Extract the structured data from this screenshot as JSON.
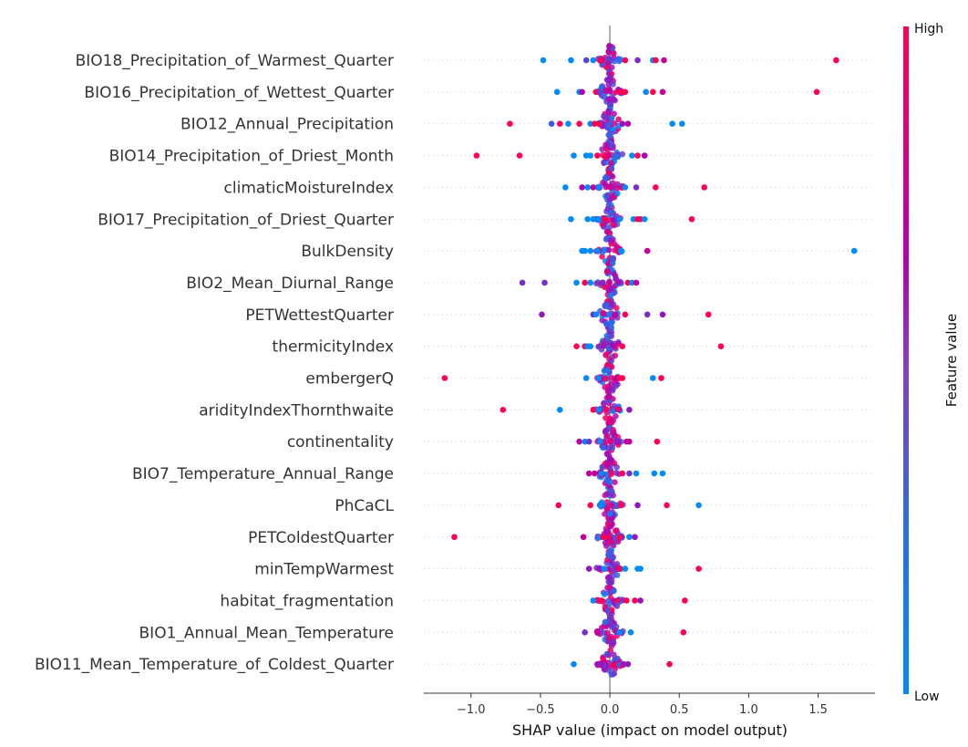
{
  "chart_data": {
    "type": "scatter",
    "subtype": "shap-beeswarm",
    "title": "",
    "xlabel": "SHAP value (impact on model output)",
    "ylabel": "",
    "xlim": [
      -1.34,
      1.91
    ],
    "xticks": [
      -1.0,
      -0.5,
      0.0,
      0.5,
      1.0,
      1.5
    ],
    "xtick_labels": [
      "−1.0",
      "−0.5",
      "0.0",
      "0.5",
      "1.0",
      "1.5"
    ],
    "grid": "dotted horizontal row lines",
    "colorbar": {
      "label": "Feature value",
      "high_label": "High",
      "low_label": "Low",
      "low_color": "#008bfb",
      "mid_color": "#b200b1",
      "high_color": "#ff0052",
      "placement": "right"
    },
    "zero_line_color": "#999999",
    "features": [
      {
        "name": "BIO18_Precipitation_of_Warmest_Quarter",
        "points": [
          [
            -0.48,
            0.0
          ],
          [
            -0.28,
            0.0
          ],
          [
            -0.17,
            0.3
          ],
          [
            -0.12,
            0.0
          ],
          [
            -0.07,
            1.0
          ],
          [
            0.11,
            1.0
          ],
          [
            0.2,
            0.4
          ],
          [
            0.31,
            0.0
          ],
          [
            0.33,
            1.0
          ],
          [
            0.39,
            0.7
          ],
          [
            1.63,
            1.0
          ]
        ]
      },
      {
        "name": "BIO16_Precipitation_of_Wettest_Quarter",
        "points": [
          [
            -0.38,
            0.0
          ],
          [
            -0.22,
            0.0
          ],
          [
            -0.2,
            0.6
          ],
          [
            -0.1,
            1.0
          ],
          [
            -0.07,
            0.3
          ],
          [
            0.08,
            1.0
          ],
          [
            0.11,
            1.0
          ],
          [
            0.26,
            0.0
          ],
          [
            0.31,
            1.0
          ],
          [
            0.38,
            0.7
          ],
          [
            1.49,
            1.0
          ]
        ]
      },
      {
        "name": "BIO12_Annual_Precipitation",
        "points": [
          [
            -0.72,
            1.0
          ],
          [
            -0.42,
            0.2
          ],
          [
            -0.36,
            1.0
          ],
          [
            -0.3,
            0.0
          ],
          [
            -0.22,
            1.0
          ],
          [
            -0.14,
            0.0
          ],
          [
            -0.11,
            1.0
          ],
          [
            -0.08,
            1.0
          ],
          [
            0.09,
            0.5
          ],
          [
            0.13,
            0.6
          ],
          [
            0.45,
            0.0
          ],
          [
            0.52,
            0.0
          ]
        ]
      },
      {
        "name": "BIO14_Precipitation_of_Driest_Month",
        "points": [
          [
            -0.96,
            1.0
          ],
          [
            -0.65,
            1.0
          ],
          [
            -0.26,
            0.0
          ],
          [
            -0.17,
            0.0
          ],
          [
            -0.14,
            0.0
          ],
          [
            -0.09,
            1.0
          ],
          [
            0.16,
            0.0
          ],
          [
            0.2,
            1.0
          ],
          [
            0.25,
            0.6
          ]
        ]
      },
      {
        "name": "climaticMoistureIndex",
        "points": [
          [
            -0.32,
            0.0
          ],
          [
            -0.2,
            0.6
          ],
          [
            -0.16,
            0.0
          ],
          [
            -0.12,
            0.7
          ],
          [
            -0.08,
            0.0
          ],
          [
            0.11,
            0.0
          ],
          [
            0.19,
            0.4
          ],
          [
            0.33,
            1.0
          ],
          [
            0.68,
            1.0
          ]
        ]
      },
      {
        "name": "BIO17_Precipitation_of_Driest_Quarter",
        "points": [
          [
            -0.28,
            0.0
          ],
          [
            -0.16,
            0.0
          ],
          [
            -0.12,
            0.0
          ],
          [
            -0.08,
            0.0
          ],
          [
            -0.04,
            1.0
          ],
          [
            0.07,
            0.0
          ],
          [
            0.17,
            0.0
          ],
          [
            0.2,
            1.0
          ],
          [
            0.22,
            1.0
          ],
          [
            0.25,
            0.0
          ],
          [
            0.59,
            1.0
          ]
        ]
      },
      {
        "name": "BulkDensity",
        "points": [
          [
            -0.2,
            0.0
          ],
          [
            -0.18,
            0.0
          ],
          [
            -0.14,
            0.0
          ],
          [
            -0.09,
            0.0
          ],
          [
            0.08,
            0.0
          ],
          [
            0.27,
            0.7
          ],
          [
            1.76,
            0.0
          ]
        ]
      },
      {
        "name": "BIO2_Mean_Diurnal_Range",
        "points": [
          [
            -0.63,
            0.4
          ],
          [
            -0.47,
            0.4
          ],
          [
            -0.24,
            0.0
          ],
          [
            -0.18,
            1.0
          ],
          [
            -0.14,
            0.0
          ],
          [
            -0.05,
            0.4
          ],
          [
            0.13,
            1.0
          ],
          [
            0.16,
            0.0
          ],
          [
            0.19,
            0.7
          ]
        ]
      },
      {
        "name": "PETWettestQuarter",
        "points": [
          [
            -0.49,
            0.5
          ],
          [
            -0.12,
            0.4
          ],
          [
            -0.1,
            0.0
          ],
          [
            0.11,
            1.0
          ],
          [
            0.27,
            0.4
          ],
          [
            0.38,
            0.5
          ],
          [
            0.71,
            1.0
          ]
        ]
      },
      {
        "name": "thermicityIndex",
        "points": [
          [
            -0.24,
            1.0
          ],
          [
            -0.18,
            1.0
          ],
          [
            -0.16,
            0.0
          ],
          [
            -0.14,
            0.0
          ],
          [
            0.09,
            1.0
          ],
          [
            0.8,
            1.0
          ]
        ]
      },
      {
        "name": "embergerQ",
        "points": [
          [
            -1.19,
            1.0
          ],
          [
            -0.17,
            0.0
          ],
          [
            -0.08,
            0.0
          ],
          [
            0.07,
            1.0
          ],
          [
            0.09,
            1.0
          ],
          [
            0.31,
            0.0
          ],
          [
            0.37,
            1.0
          ]
        ]
      },
      {
        "name": "aridityIndexThornthwaite",
        "points": [
          [
            -0.77,
            1.0
          ],
          [
            -0.36,
            0.0
          ],
          [
            -0.12,
            1.0
          ],
          [
            -0.08,
            0.0
          ],
          [
            0.14,
            0.5
          ]
        ]
      },
      {
        "name": "continentality",
        "points": [
          [
            -0.22,
            0.7
          ],
          [
            -0.18,
            0.0
          ],
          [
            -0.15,
            0.4
          ],
          [
            -0.07,
            0.0
          ],
          [
            0.12,
            0.7
          ],
          [
            0.14,
            0.7
          ],
          [
            0.34,
            1.0
          ]
        ]
      },
      {
        "name": "BIO7_Temperature_Annual_Range",
        "points": [
          [
            -0.15,
            0.7
          ],
          [
            -0.11,
            0.7
          ],
          [
            -0.06,
            0.0
          ],
          [
            0.09,
            1.0
          ],
          [
            0.14,
            0.4
          ],
          [
            0.19,
            0.0
          ],
          [
            0.32,
            0.0
          ],
          [
            0.38,
            0.0
          ]
        ]
      },
      {
        "name": "PhCaCL",
        "points": [
          [
            -0.37,
            1.0
          ],
          [
            -0.14,
            1.0
          ],
          [
            -0.07,
            0.0
          ],
          [
            0.08,
            1.0
          ],
          [
            0.2,
            0.5
          ],
          [
            0.41,
            1.0
          ],
          [
            0.64,
            0.0
          ]
        ]
      },
      {
        "name": "PETColdestQuarter",
        "points": [
          [
            -1.12,
            1.0
          ],
          [
            -0.19,
            0.7
          ],
          [
            -0.07,
            0.0
          ],
          [
            -0.05,
            1.0
          ],
          [
            0.07,
            1.0
          ],
          [
            0.14,
            0.0
          ],
          [
            0.18,
            0.5
          ]
        ]
      },
      {
        "name": "minTempWarmest",
        "points": [
          [
            -0.15,
            0.5
          ],
          [
            -0.08,
            0.5
          ],
          [
            -0.04,
            0.0
          ],
          [
            0.07,
            1.0
          ],
          [
            0.11,
            0.0
          ],
          [
            0.2,
            0.0
          ],
          [
            0.22,
            0.0
          ],
          [
            0.64,
            1.0
          ]
        ]
      },
      {
        "name": "habitat_fragmentation",
        "points": [
          [
            -0.12,
            0.0
          ],
          [
            -0.06,
            1.0
          ],
          [
            0.12,
            1.0
          ],
          [
            0.18,
            1.0
          ],
          [
            0.22,
            0.5
          ],
          [
            0.54,
            1.0
          ]
        ]
      },
      {
        "name": "BIO1_Annual_Mean_Temperature",
        "points": [
          [
            -0.18,
            0.4
          ],
          [
            -0.09,
            0.7
          ],
          [
            0.07,
            0.0
          ],
          [
            0.15,
            0.0
          ],
          [
            0.53,
            1.0
          ]
        ]
      },
      {
        "name": "BIO11_Mean_Temperature_of_Coldest_Quarter",
        "points": [
          [
            -0.26,
            0.0
          ],
          [
            -0.09,
            0.5
          ],
          [
            -0.06,
            0.5
          ],
          [
            0.1,
            0.5
          ],
          [
            0.13,
            0.5
          ],
          [
            0.43,
            1.0
          ]
        ]
      }
    ]
  }
}
